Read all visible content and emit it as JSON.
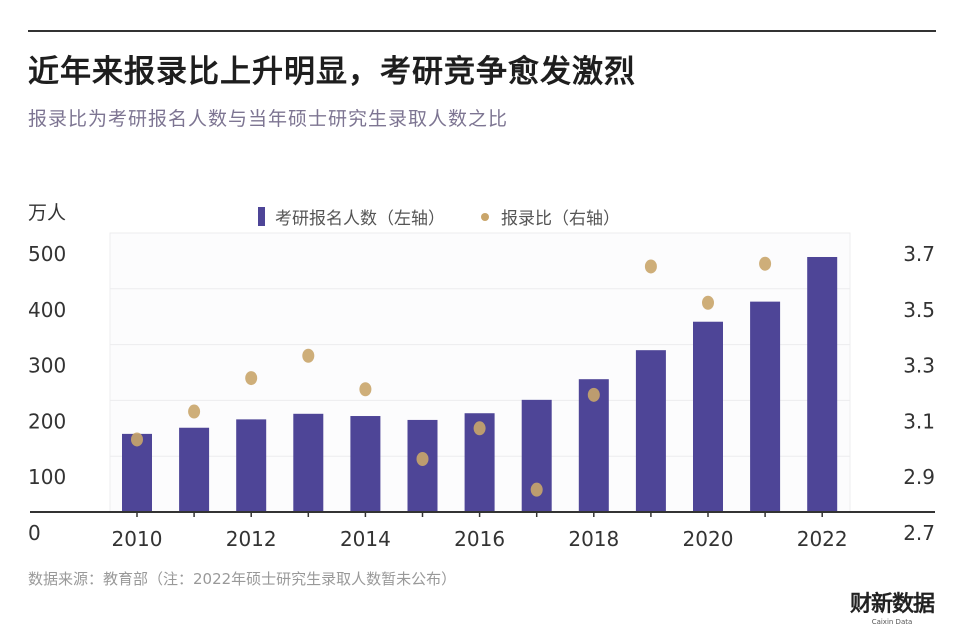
{
  "header": {
    "title": "近年来报录比上升明显，考研竞争愈发激烈",
    "subtitle": "报录比为考研报名人数与当年硕士研究生录取人数之比"
  },
  "chart_data": {
    "type": "bar+scatter",
    "title": "近年来报录比上升明显，考研竞争愈发激烈",
    "subtitle": "报录比为考研报名人数与当年硕士研究生录取人数之比",
    "left_unit": "万人",
    "categories": [
      "2010",
      "2011",
      "2012",
      "2013",
      "2014",
      "2015",
      "2016",
      "2017",
      "2018",
      "2019",
      "2020",
      "2021",
      "2022"
    ],
    "x_tick_labels": [
      "2010",
      "2012",
      "2014",
      "2016",
      "2018",
      "2020",
      "2022"
    ],
    "series": [
      {
        "name": "考研报名人数（左轴）",
        "type": "bar",
        "axis": "left",
        "color": "#4e4597",
        "values": [
          140,
          151,
          166,
          176,
          172,
          165,
          177,
          201,
          238,
          290,
          341,
          377,
          457
        ]
      },
      {
        "name": "报录比（右轴）",
        "type": "scatter",
        "axis": "right",
        "color": "#c9a56a",
        "values": [
          2.96,
          3.06,
          3.18,
          3.26,
          3.14,
          2.89,
          3.0,
          2.78,
          3.12,
          3.58,
          3.45,
          3.59,
          null
        ]
      }
    ],
    "left_axis": {
      "ylim": [
        0,
        500
      ],
      "ticks": [
        "0",
        "100",
        "200",
        "300",
        "400",
        "500"
      ]
    },
    "right_axis": {
      "ylim": [
        2.7,
        3.7
      ],
      "ticks": [
        "2.7",
        "2.9",
        "3.1",
        "3.3",
        "3.5",
        "3.7"
      ]
    },
    "grid": true,
    "legend": "top"
  },
  "footer": {
    "source": "数据来源：教育部（注：2022年硕士研究生录取人数暂未公布）",
    "logo": "财新数据",
    "logo_sub": "Caixin Data"
  }
}
